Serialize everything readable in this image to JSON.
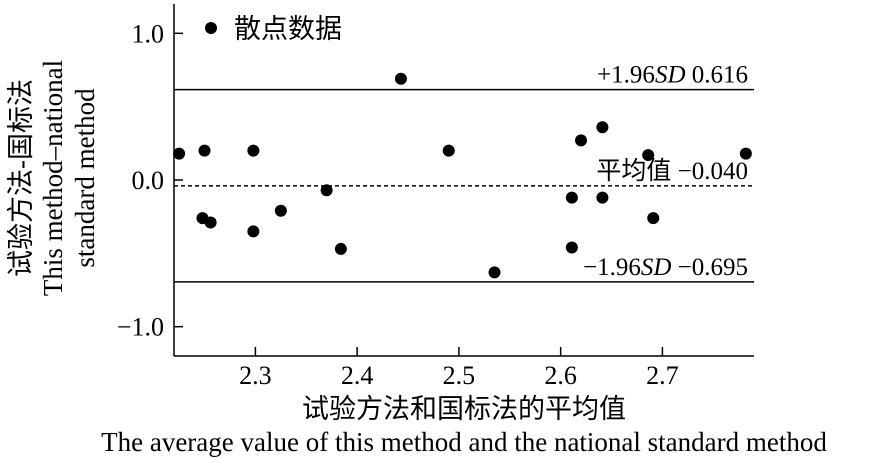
{
  "chart_data": {
    "type": "scatter",
    "xlabel_cn": "试验方法和国标法的平均值",
    "xlabel_en": "The average value of this method and the national standard method",
    "ylabel_cn": "试验方法-国标法",
    "ylabel_en_line1": "This method–national",
    "ylabel_en_line2": "standard method",
    "xlim": [
      2.22,
      2.79
    ],
    "ylim": [
      -1.2,
      1.2
    ],
    "xticks": [
      2.3,
      2.4,
      2.5,
      2.6,
      2.7
    ],
    "xtick_labels": [
      "2.3",
      "2.4",
      "2.5",
      "2.6",
      "2.7"
    ],
    "yticks": [
      1.0,
      0.0,
      -1.0
    ],
    "ytick_labels": [
      "1.0",
      "0.0",
      "−1.0"
    ],
    "legend": {
      "label": "散点数据",
      "placement": "top-left"
    },
    "reference_lines": [
      {
        "name": "upper",
        "value": 0.616,
        "style": "solid",
        "label_prefix": "+1.96",
        "label_italic": "SD",
        "label_value": "0.616"
      },
      {
        "name": "mean",
        "value": -0.04,
        "style": "dashed",
        "label_prefix": "平均值",
        "label_italic": "",
        "label_value": "−0.040"
      },
      {
        "name": "lower",
        "value": -0.695,
        "style": "solid",
        "label_prefix": "−1.96",
        "label_italic": "SD",
        "label_value": "−0.695"
      }
    ],
    "points": [
      {
        "x": 2.225,
        "y": 0.18
      },
      {
        "x": 2.248,
        "y": -0.26
      },
      {
        "x": 2.25,
        "y": 0.2
      },
      {
        "x": 2.256,
        "y": -0.29
      },
      {
        "x": 2.298,
        "y": 0.2
      },
      {
        "x": 2.298,
        "y": -0.35
      },
      {
        "x": 2.325,
        "y": -0.21
      },
      {
        "x": 2.37,
        "y": -0.07
      },
      {
        "x": 2.384,
        "y": -0.47
      },
      {
        "x": 2.443,
        "y": 0.69
      },
      {
        "x": 2.49,
        "y": 0.2
      },
      {
        "x": 2.535,
        "y": -0.63
      },
      {
        "x": 2.611,
        "y": -0.12
      },
      {
        "x": 2.611,
        "y": -0.46
      },
      {
        "x": 2.62,
        "y": 0.27
      },
      {
        "x": 2.641,
        "y": 0.36
      },
      {
        "x": 2.641,
        "y": -0.12
      },
      {
        "x": 2.686,
        "y": 0.17
      },
      {
        "x": 2.691,
        "y": -0.26
      },
      {
        "x": 2.782,
        "y": 0.18
      }
    ],
    "grid": false,
    "colors": {
      "points": "#000000",
      "lines": "#000000",
      "background": "#ffffff"
    }
  }
}
